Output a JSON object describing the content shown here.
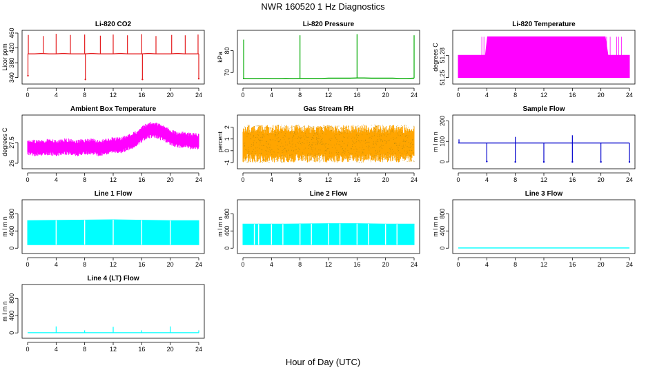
{
  "figure": {
    "title": "NWR  160520  1 Hz Diagnostics",
    "xlabel": "Hour of Day (UTC)"
  },
  "chart_data": [
    {
      "id": "li820-co2",
      "type": "line",
      "title": "Li-820 CO2",
      "ylabel": "Licor ppm",
      "color": "#e41a1c",
      "xlim": [
        0,
        24
      ],
      "xticks": [
        0,
        4,
        8,
        12,
        16,
        20,
        24
      ],
      "ylim": [
        330,
        460
      ],
      "yticks": [
        340,
        380,
        420,
        460
      ],
      "series": [
        {
          "x": [
            0,
            1,
            2,
            3,
            4,
            5,
            6,
            7,
            8,
            9,
            10,
            11,
            12,
            13,
            14,
            15,
            16,
            17,
            18,
            19,
            20,
            21,
            22,
            23,
            24
          ],
          "values": [
            404,
            404,
            405,
            404,
            404,
            405,
            404,
            404,
            404,
            405,
            404,
            404,
            404,
            405,
            404,
            404,
            404,
            405,
            404,
            404,
            404,
            405,
            404,
            404,
            404
          ]
        }
      ],
      "spikes": {
        "x": [
          0.1,
          2.2,
          4.0,
          6.0,
          8.0,
          10.2,
          12.0,
          14.0,
          16.0,
          18.0,
          20.2,
          22.1,
          23.9
        ],
        "values": [
          455,
          452,
          458,
          455,
          456,
          453,
          456,
          454,
          457,
          452,
          455,
          454,
          456
        ]
      },
      "dips": {
        "x": [
          0.05,
          8.1,
          16.1,
          24.0
        ],
        "values": [
          345,
          335,
          335,
          337
        ]
      }
    },
    {
      "id": "li820-pressure",
      "type": "line",
      "title": "Li-820 Pressure",
      "ylabel": "kPa",
      "color": "#00aa00",
      "xlim": [
        0,
        24
      ],
      "xticks": [
        0,
        4,
        8,
        12,
        16,
        20,
        24
      ],
      "ylim": [
        66,
        88
      ],
      "yticks": [
        70,
        80
      ],
      "series": [
        {
          "x": [
            0,
            1,
            2,
            3,
            4,
            5,
            6,
            7,
            8,
            9,
            10,
            11,
            12,
            13,
            14,
            15,
            16,
            17,
            18,
            19,
            20,
            21,
            22,
            23,
            24
          ],
          "values": [
            67.2,
            67.2,
            67.2,
            67.3,
            67.2,
            67.2,
            67.3,
            67.2,
            67.3,
            67.3,
            67.3,
            67.3,
            67.4,
            67.4,
            67.4,
            67.4,
            67.5,
            67.5,
            67.4,
            67.4,
            67.4,
            67.4,
            67.3,
            67.3,
            67.4
          ]
        }
      ],
      "spikes": {
        "x": [
          0.1,
          8.0,
          16.0,
          24.0
        ],
        "values": [
          85,
          87,
          87.5,
          87
        ]
      }
    },
    {
      "id": "li820-temperature",
      "type": "area",
      "title": "Li-820 Temperature",
      "ylabel": "degrees C",
      "color": "#ff00ff",
      "xlim": [
        0,
        24
      ],
      "xticks": [
        0,
        4,
        8,
        12,
        16,
        20,
        24
      ],
      "ylim": [
        51.245,
        51.31
      ],
      "yticks": [
        51.25,
        51.28
      ],
      "series": [
        {
          "x": [
            0,
            3.8,
            4.1,
            20.6,
            21,
            24
          ],
          "values": [
            51.28,
            51.28,
            51.305,
            51.305,
            51.28,
            51.28
          ]
        }
      ],
      "baseline": 51.25
    },
    {
      "id": "ambient-box-temperature",
      "type": "line",
      "title": "Ambient Box Temperature",
      "ylabel": "degrees C",
      "color": "#ff00ff",
      "xlim": [
        0,
        24
      ],
      "xticks": [
        0,
        4,
        8,
        12,
        16,
        20,
        24
      ],
      "ylim": [
        25.8,
        29.3
      ],
      "yticks": [
        26.0,
        27.5
      ],
      "series": [
        {
          "x": [
            0,
            1,
            2,
            3,
            4,
            5,
            6,
            7,
            8,
            9,
            10,
            11,
            12,
            13,
            14,
            15,
            16,
            17,
            18,
            19,
            20,
            21,
            22,
            23,
            24
          ],
          "values": [
            27.2,
            27.1,
            27.1,
            27.2,
            27.1,
            27.2,
            27.2,
            27.1,
            27.2,
            27.2,
            27.1,
            27.2,
            27.3,
            27.3,
            27.5,
            27.7,
            28.1,
            28.4,
            28.4,
            28.2,
            27.9,
            27.7,
            27.7,
            27.6,
            27.6
          ]
        }
      ],
      "band": 0.6
    },
    {
      "id": "gas-stream-rh",
      "type": "line",
      "title": "Gas Stream RH",
      "ylabel": "percent",
      "color": "#ffa500",
      "dot_color": "#b8860b",
      "xlim": [
        0,
        24
      ],
      "xticks": [
        0,
        4,
        8,
        12,
        16,
        20,
        24
      ],
      "ylim": [
        -1.3,
        2.8
      ],
      "yticks": [
        -1,
        0,
        1,
        2
      ],
      "series": [
        {
          "x": [
            0,
            4,
            8,
            12,
            16,
            20,
            24
          ],
          "values": [
            0.6,
            0.6,
            0.6,
            0.6,
            0.6,
            0.6,
            0.6
          ]
        }
      ],
      "band": 1.6
    },
    {
      "id": "sample-flow",
      "type": "line",
      "title": "Sample Flow",
      "ylabel": "m l m n",
      "color": "#0000cc",
      "xlim": [
        0,
        24
      ],
      "xticks": [
        0,
        4,
        8,
        12,
        16,
        20,
        24
      ],
      "ylim": [
        -20,
        215
      ],
      "yticks": [
        0,
        100,
        200
      ],
      "series": [
        {
          "x": [
            0,
            4,
            8,
            12,
            16,
            20,
            24
          ],
          "values": [
            92,
            92,
            92,
            92,
            92,
            92,
            92
          ]
        }
      ],
      "dips": {
        "x": [
          4.0,
          8.0,
          12.0,
          16.0,
          20.0,
          24.0
        ],
        "values": [
          2,
          0,
          0,
          0,
          0,
          0
        ]
      },
      "spikes": {
        "x": [
          0.1,
          8.0,
          16.0
        ],
        "values": [
          110,
          122,
          130
        ]
      }
    },
    {
      "id": "line-1-flow",
      "type": "area",
      "title": "Line 1 Flow",
      "ylabel": "m l m n",
      "color": "#00ffff",
      "xlim": [
        0,
        24
      ],
      "xticks": [
        0,
        4,
        8,
        12,
        16,
        20,
        24
      ],
      "ylim": [
        -60,
        1060
      ],
      "yticks": [
        0,
        400,
        800
      ],
      "series": [
        {
          "x": [
            0,
            6,
            12,
            16,
            20,
            24
          ],
          "values": [
            640,
            650,
            660,
            650,
            640,
            640
          ]
        }
      ],
      "baseline": 80,
      "gaps": [
        4.0,
        8.0,
        12.0,
        16.0,
        20.0
      ]
    },
    {
      "id": "line-2-flow",
      "type": "area",
      "title": "Line 2 Flow",
      "ylabel": "m l m n",
      "color": "#00ffff",
      "xlim": [
        0,
        24
      ],
      "xticks": [
        0,
        4,
        8,
        12,
        16,
        20,
        24
      ],
      "ylim": [
        -60,
        1060
      ],
      "yticks": [
        0,
        400,
        800
      ],
      "series": [
        {
          "x": [
            0,
            6,
            12,
            16,
            20,
            24
          ],
          "values": [
            560,
            560,
            570,
            570,
            560,
            560
          ]
        }
      ],
      "baseline": 80,
      "gaps": [
        1.6,
        2.2,
        4.0,
        5.6,
        8.0,
        9.6,
        12.0,
        13.6,
        16.0,
        17.6,
        20.0,
        21.6
      ]
    },
    {
      "id": "line-3-flow",
      "type": "line",
      "title": "Line 3 Flow",
      "ylabel": "m l m n",
      "color": "#00ffff",
      "xlim": [
        0,
        24
      ],
      "xticks": [
        0,
        4,
        8,
        12,
        16,
        20,
        24
      ],
      "ylim": [
        -60,
        1060
      ],
      "yticks": [
        0,
        400,
        800
      ],
      "series": [
        {
          "x": [
            0,
            24
          ],
          "values": [
            5,
            5
          ]
        }
      ]
    },
    {
      "id": "line-4-lt-flow",
      "type": "line",
      "title": "Line 4 (LT) Flow",
      "ylabel": "m l m n",
      "color": "#00ffff",
      "xlim": [
        0,
        24
      ],
      "xticks": [
        0,
        4,
        8,
        12,
        16,
        20,
        24
      ],
      "ylim": [
        -60,
        1060
      ],
      "yticks": [
        0,
        400,
        800
      ],
      "series": [
        {
          "x": [
            0,
            24
          ],
          "values": [
            5,
            5
          ]
        }
      ],
      "spikes": {
        "x": [
          4.0,
          8.0,
          12.0,
          16.0,
          20.0,
          24.0
        ],
        "values": [
          150,
          60,
          140,
          60,
          150,
          60
        ]
      }
    }
  ]
}
